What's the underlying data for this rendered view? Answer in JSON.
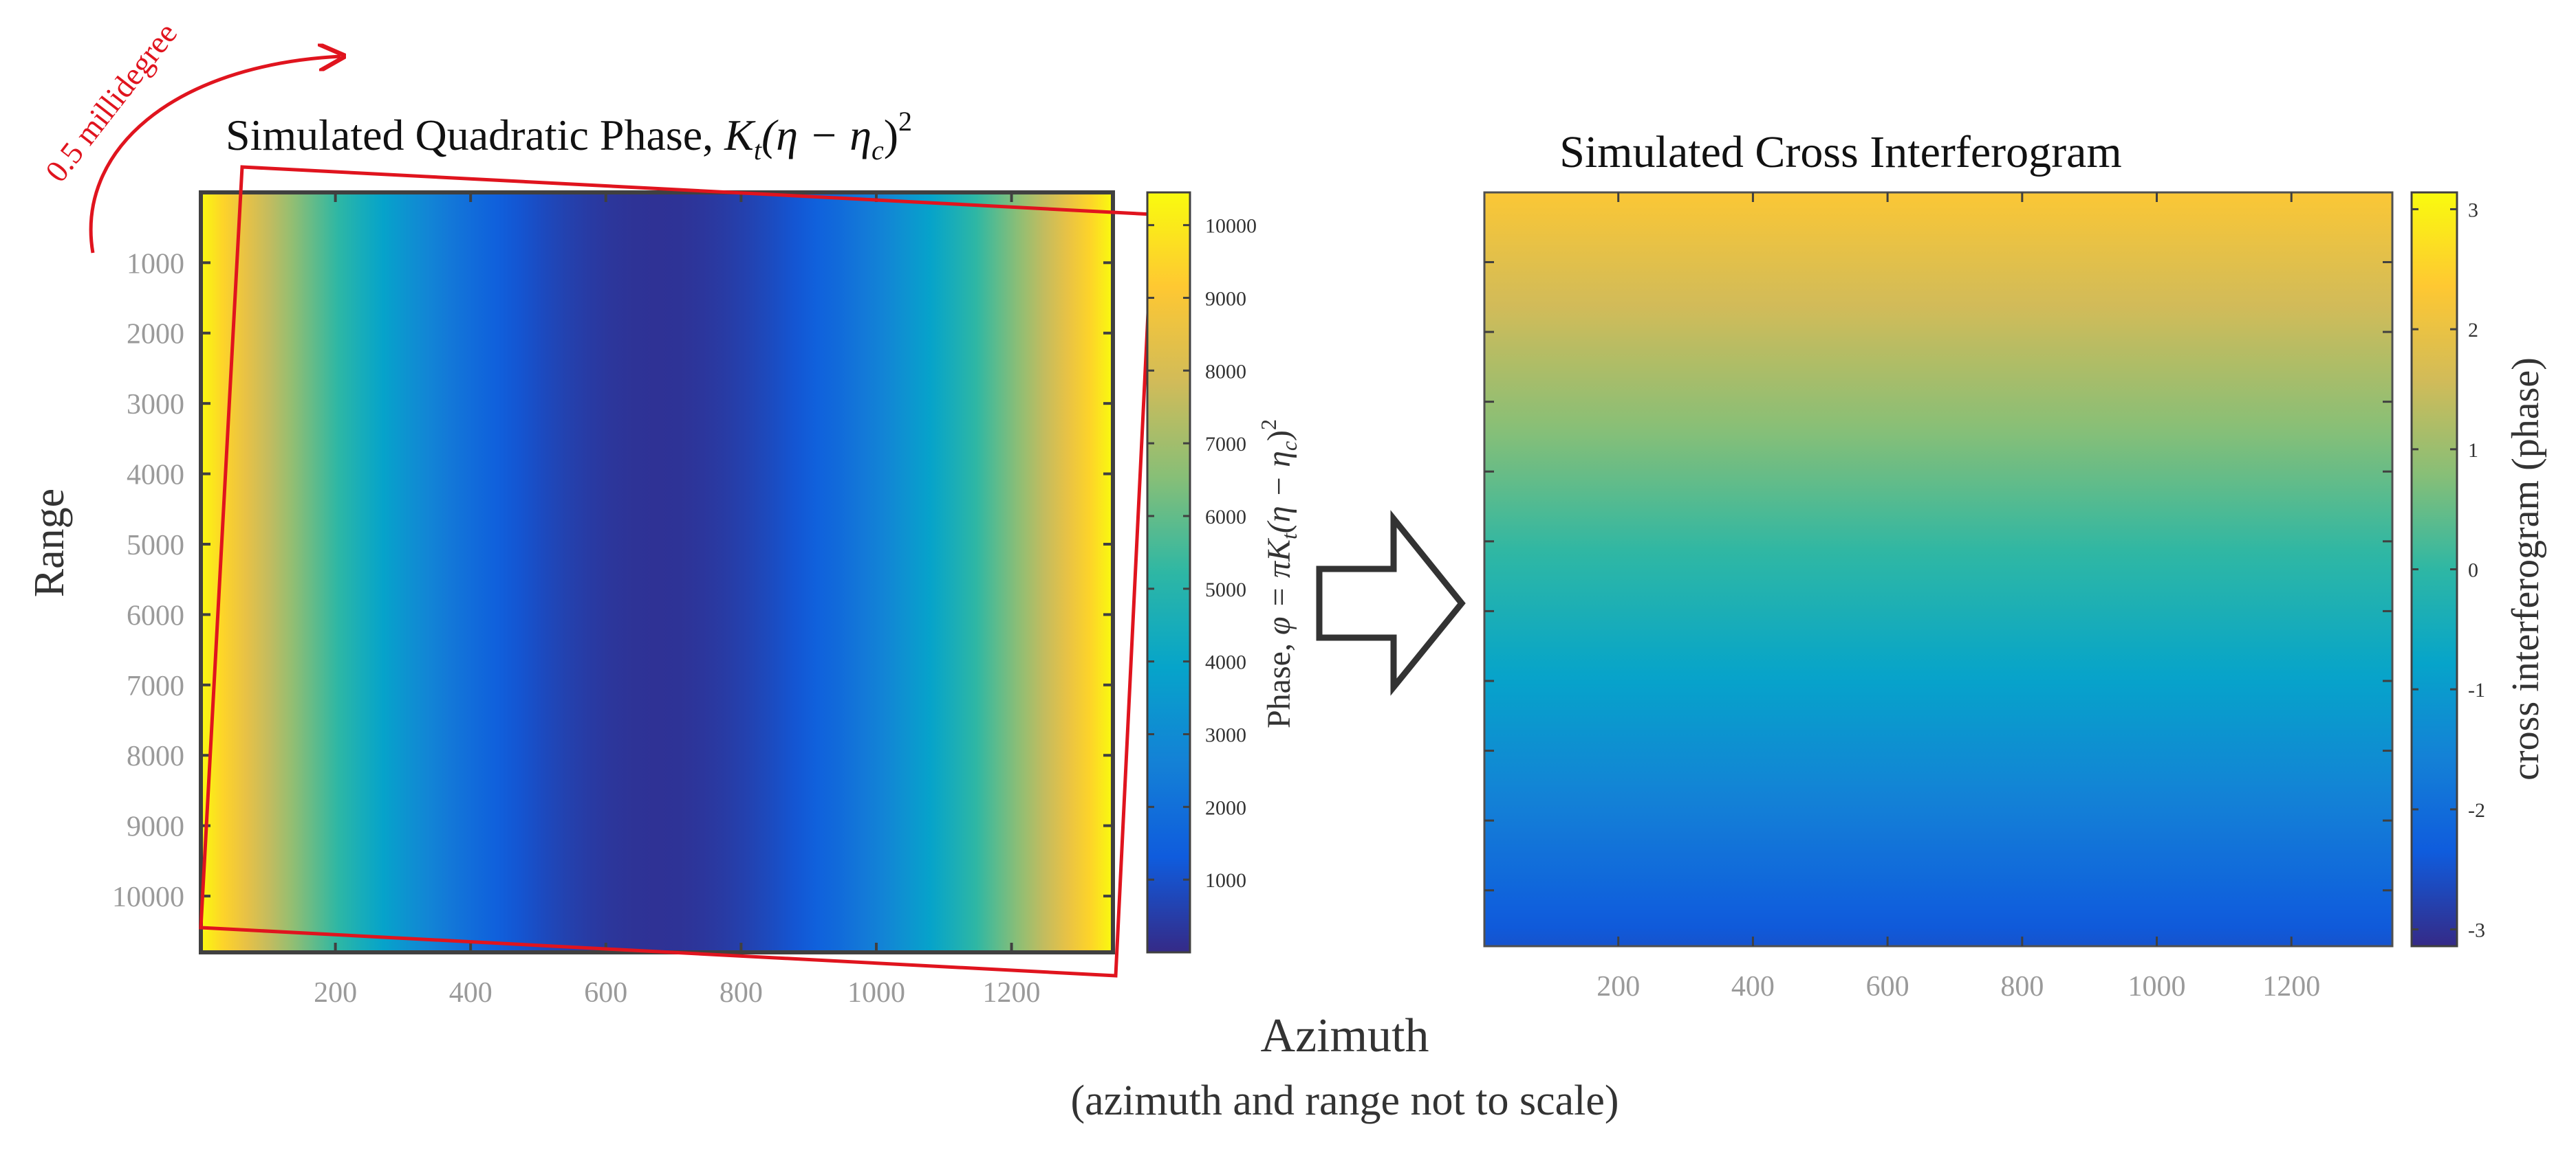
{
  "colors": {
    "parula": [
      "#352a87",
      "#0f5cdd",
      "#1481d6",
      "#06a4ca",
      "#2eb7a4",
      "#87bf77",
      "#d1bb59",
      "#fec832",
      "#f9fb0e"
    ],
    "annotation_red": "#e0141e",
    "frame": "#404040",
    "arrow": "#333333"
  },
  "chart_data": [
    {
      "type": "heatmap",
      "title_text": "Simulated Quadratic Phase, ",
      "title_math": "K",
      "title_math_sub": "t",
      "title_math_rest": "(η − η",
      "title_math_rest_sub": "c",
      "title_math_close": ")",
      "title_math_sup": "2",
      "xlabel": "Azimuth",
      "xlabel_note": "(azimuth and range not to scale)",
      "ylabel": "Range",
      "xlim": [
        1,
        1350
      ],
      "ylim": [
        1,
        10800
      ],
      "xticks": [
        200,
        400,
        600,
        800,
        1000,
        1200
      ],
      "yticks": [
        1000,
        2000,
        3000,
        4000,
        5000,
        6000,
        7000,
        8000,
        9000,
        10000
      ],
      "function": "quadratic in azimuth",
      "center_azimuth": 675,
      "clim": [
        0,
        10450
      ],
      "colorbar": {
        "label_prefix": "Phase, ",
        "label_math": "φ = πK",
        "label_sub": "t",
        "label_rest": "(η − η",
        "label_rest_sub": "c",
        "label_close": ")",
        "label_sup": "2",
        "ticks": [
          1000,
          2000,
          3000,
          4000,
          5000,
          6000,
          7000,
          8000,
          9000,
          10000
        ]
      },
      "annotation": {
        "text": "0.5 millidegree",
        "rotation_deg": 0.5
      }
    },
    {
      "type": "heatmap",
      "title": "Simulated Cross Interferogram",
      "xlim": [
        1,
        1350
      ],
      "ylim": [
        1,
        10800
      ],
      "xticks": [
        200,
        400,
        600,
        800,
        1000,
        1200
      ],
      "function": "linear in range (top high, bottom low)",
      "clim": [
        -3.14,
        3.14
      ],
      "value_top": 2.3,
      "value_bottom": -2.5,
      "colorbar": {
        "label": "cross interferogram (phase)",
        "ticks": [
          3,
          2,
          1,
          0,
          -1,
          -2,
          -3
        ]
      }
    }
  ]
}
